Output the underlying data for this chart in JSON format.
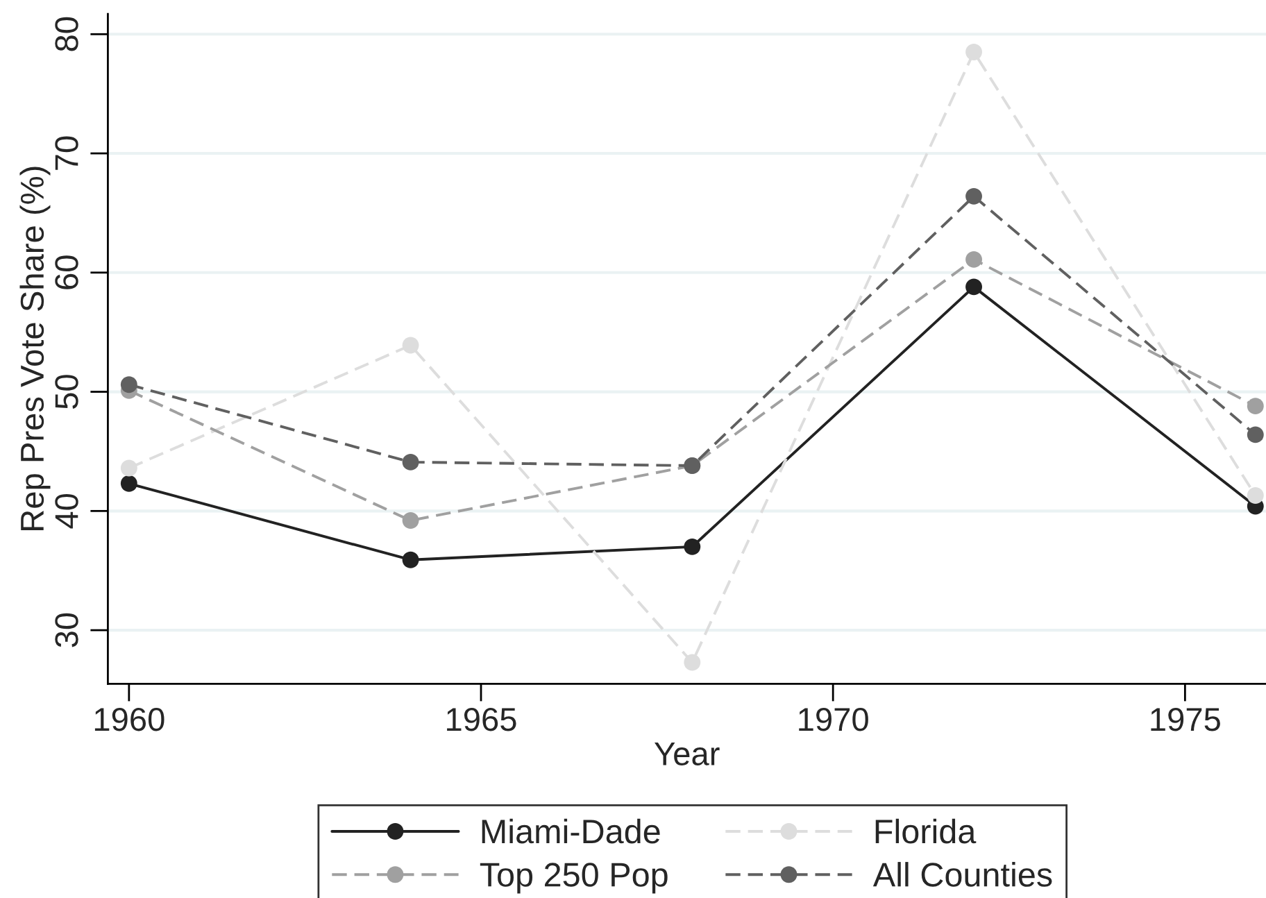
{
  "chart_data": {
    "type": "line",
    "xlabel": "Year",
    "ylabel": "Rep Pres Vote Share (%)",
    "x": [
      1960,
      1964,
      1968,
      1972,
      1976
    ],
    "xlim": [
      1959.7,
      1976.15
    ],
    "xticks": [
      1960,
      1965,
      1970,
      1975
    ],
    "ylim": [
      25.5,
      81.7
    ],
    "yticks": [
      30,
      40,
      50,
      60,
      70,
      80
    ],
    "grid": "y",
    "legend": "bottom",
    "marker": "circle",
    "series": [
      {
        "name": "Miami-Dade",
        "color": "#222222",
        "line_style": "solid",
        "values": [
          42.3,
          35.9,
          37.0,
          58.8,
          40.4
        ]
      },
      {
        "name": "Florida",
        "color": "#dddddd",
        "line_style": "dashed",
        "values": [
          43.6,
          53.9,
          27.3,
          78.5,
          41.3
        ]
      },
      {
        "name": "Top 250 Pop",
        "color": "#a0a0a0",
        "line_style": "dashed",
        "values": [
          50.1,
          39.2,
          43.8,
          61.1,
          48.8
        ]
      },
      {
        "name": "All Counties",
        "color": "#606060",
        "line_style": "dashed",
        "values": [
          50.6,
          44.1,
          43.8,
          66.4,
          46.4
        ]
      }
    ]
  }
}
